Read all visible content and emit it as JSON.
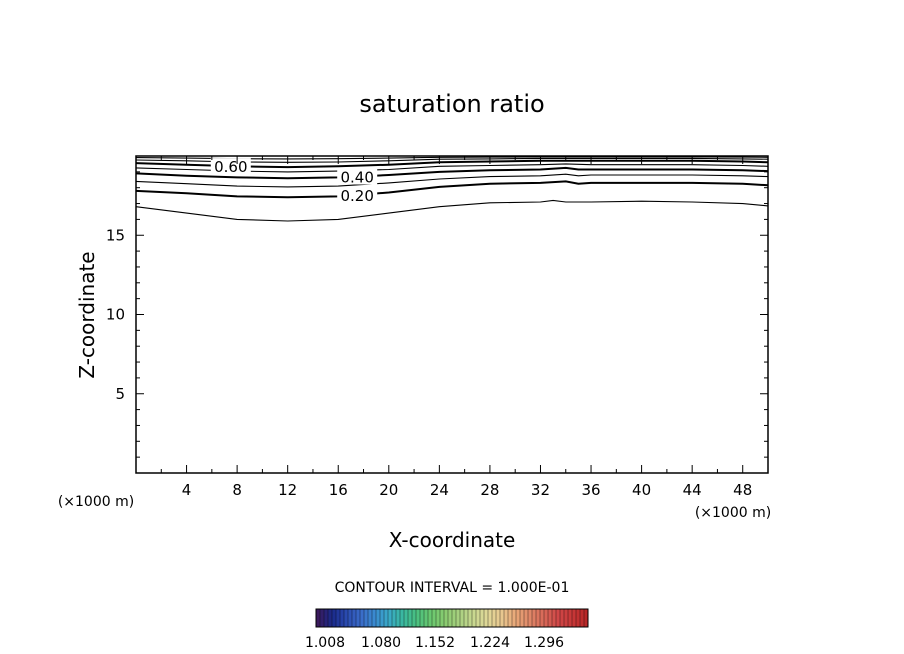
{
  "chart_data": {
    "type": "contour",
    "title": "saturation ratio",
    "xlabel": "X-coordinate",
    "ylabel": "Z-coordinate",
    "x_unit": "(×1000 m)",
    "x_unit_right": "(×1000 m)",
    "xlim": [
      0,
      50
    ],
    "ylim": [
      0,
      20
    ],
    "x_ticks": [
      "4",
      "8",
      "12",
      "16",
      "20",
      "24",
      "28",
      "32",
      "36",
      "40",
      "44",
      "48"
    ],
    "y_ticks": [
      "5",
      "10",
      "15"
    ],
    "contour_interval_text": "CONTOUR INTERVAL = 1.000E-01",
    "contours": [
      {
        "level": 0.1,
        "label": "",
        "points": [
          [
            0,
            16.8
          ],
          [
            4,
            16.4
          ],
          [
            8,
            16.0
          ],
          [
            12,
            15.9
          ],
          [
            16,
            16.0
          ],
          [
            20,
            16.4
          ],
          [
            24,
            16.8
          ],
          [
            28,
            17.05
          ],
          [
            32,
            17.1
          ],
          [
            33,
            17.2
          ],
          [
            34,
            17.1
          ],
          [
            36,
            17.1
          ],
          [
            40,
            17.15
          ],
          [
            44,
            17.1
          ],
          [
            48,
            17.0
          ],
          [
            50,
            16.85
          ]
        ]
      },
      {
        "level": 0.2,
        "label": "0.20",
        "label_x": 17.5,
        "points": [
          [
            0,
            17.8
          ],
          [
            4,
            17.65
          ],
          [
            8,
            17.45
          ],
          [
            12,
            17.4
          ],
          [
            16,
            17.45
          ],
          [
            20,
            17.7
          ],
          [
            24,
            18.05
          ],
          [
            28,
            18.25
          ],
          [
            32,
            18.3
          ],
          [
            34,
            18.4
          ],
          [
            35,
            18.25
          ],
          [
            36,
            18.3
          ],
          [
            40,
            18.3
          ],
          [
            44,
            18.3
          ],
          [
            48,
            18.25
          ],
          [
            50,
            18.15
          ]
        ]
      },
      {
        "level": 0.3,
        "label": "",
        "points": [
          [
            0,
            18.4
          ],
          [
            4,
            18.25
          ],
          [
            8,
            18.1
          ],
          [
            12,
            18.05
          ],
          [
            16,
            18.1
          ],
          [
            20,
            18.3
          ],
          [
            24,
            18.55
          ],
          [
            28,
            18.7
          ],
          [
            32,
            18.75
          ],
          [
            34,
            18.85
          ],
          [
            35,
            18.75
          ],
          [
            36,
            18.8
          ],
          [
            40,
            18.8
          ],
          [
            44,
            18.8
          ],
          [
            48,
            18.75
          ],
          [
            50,
            18.7
          ]
        ]
      },
      {
        "level": 0.4,
        "label": "0.40",
        "label_x": 17.5,
        "points": [
          [
            0,
            18.9
          ],
          [
            4,
            18.75
          ],
          [
            8,
            18.65
          ],
          [
            12,
            18.6
          ],
          [
            16,
            18.65
          ],
          [
            20,
            18.8
          ],
          [
            24,
            19.0
          ],
          [
            28,
            19.1
          ],
          [
            32,
            19.15
          ],
          [
            34,
            19.25
          ],
          [
            35,
            19.15
          ],
          [
            36,
            19.15
          ],
          [
            40,
            19.15
          ],
          [
            44,
            19.15
          ],
          [
            48,
            19.1
          ],
          [
            50,
            19.05
          ]
        ]
      },
      {
        "level": 0.5,
        "label": "",
        "points": [
          [
            0,
            19.25
          ],
          [
            4,
            19.15
          ],
          [
            8,
            19.05
          ],
          [
            12,
            19.0
          ],
          [
            16,
            19.05
          ],
          [
            20,
            19.15
          ],
          [
            24,
            19.35
          ],
          [
            28,
            19.4
          ],
          [
            32,
            19.45
          ],
          [
            34,
            19.5
          ],
          [
            36,
            19.45
          ],
          [
            40,
            19.45
          ],
          [
            44,
            19.45
          ],
          [
            48,
            19.4
          ],
          [
            50,
            19.35
          ]
        ]
      },
      {
        "level": 0.6,
        "label": "0.60",
        "label_x": 7.5,
        "points": [
          [
            0,
            19.55
          ],
          [
            4,
            19.45
          ],
          [
            8,
            19.35
          ],
          [
            12,
            19.3
          ],
          [
            16,
            19.35
          ],
          [
            20,
            19.45
          ],
          [
            24,
            19.6
          ],
          [
            28,
            19.65
          ],
          [
            32,
            19.7
          ],
          [
            36,
            19.7
          ],
          [
            40,
            19.7
          ],
          [
            44,
            19.7
          ],
          [
            48,
            19.65
          ],
          [
            50,
            19.6
          ]
        ]
      },
      {
        "level": 0.7,
        "label": "",
        "points": [
          [
            0,
            19.75
          ],
          [
            4,
            19.7
          ],
          [
            8,
            19.62
          ],
          [
            12,
            19.6
          ],
          [
            16,
            19.62
          ],
          [
            20,
            19.7
          ],
          [
            24,
            19.8
          ],
          [
            28,
            19.82
          ],
          [
            32,
            19.85
          ],
          [
            36,
            19.85
          ],
          [
            40,
            19.85
          ],
          [
            44,
            19.85
          ],
          [
            48,
            19.82
          ],
          [
            50,
            19.8
          ]
        ]
      },
      {
        "level": 0.8,
        "label": "",
        "points": [
          [
            0,
            19.9
          ],
          [
            4,
            19.87
          ],
          [
            8,
            19.83
          ],
          [
            12,
            19.82
          ],
          [
            16,
            19.83
          ],
          [
            20,
            19.87
          ],
          [
            24,
            19.92
          ],
          [
            28,
            19.93
          ],
          [
            32,
            19.94
          ],
          [
            36,
            19.94
          ],
          [
            40,
            19.94
          ],
          [
            44,
            19.94
          ],
          [
            48,
            19.93
          ],
          [
            50,
            19.92
          ]
        ]
      }
    ],
    "colorbar": {
      "tick_labels": [
        "1.008",
        "1.080",
        "1.152",
        "1.224",
        "1.296"
      ],
      "colors": [
        "#3a1a5e",
        "#1a2a8a",
        "#2a4ab0",
        "#3a6ac8",
        "#3a8ad0",
        "#3aaac8",
        "#3ab8a0",
        "#4ac080",
        "#6ac870",
        "#8acc70",
        "#a8d080",
        "#c8d890",
        "#e0d898",
        "#e8c890",
        "#e8a878",
        "#e08868",
        "#d86858",
        "#d04848",
        "#c83838",
        "#b82828"
      ]
    }
  }
}
